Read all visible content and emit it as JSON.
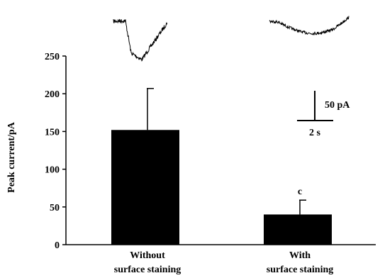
{
  "chart_data": {
    "type": "bar",
    "ylabel": "Peak current/pA",
    "xlabel": "",
    "ylim": [
      0,
      250
    ],
    "yticks": [
      0,
      50,
      100,
      150,
      200,
      250
    ],
    "yticklabels": [
      "0",
      "50",
      "100",
      "150",
      "200",
      "250"
    ],
    "categories": [
      [
        "Without",
        "surface staining"
      ],
      [
        "With",
        "surface staining"
      ]
    ],
    "values": [
      152,
      40
    ],
    "errors": [
      55,
      19
    ],
    "bar_color": "#000000",
    "annotations": [
      {
        "category_index": 1,
        "text": "c"
      }
    ],
    "scale_bar": {
      "current_label": "50 pA",
      "time_label": "2 s"
    },
    "traces": [
      {
        "name": "without-staining-trace"
      },
      {
        "name": "with-staining-trace"
      }
    ]
  }
}
